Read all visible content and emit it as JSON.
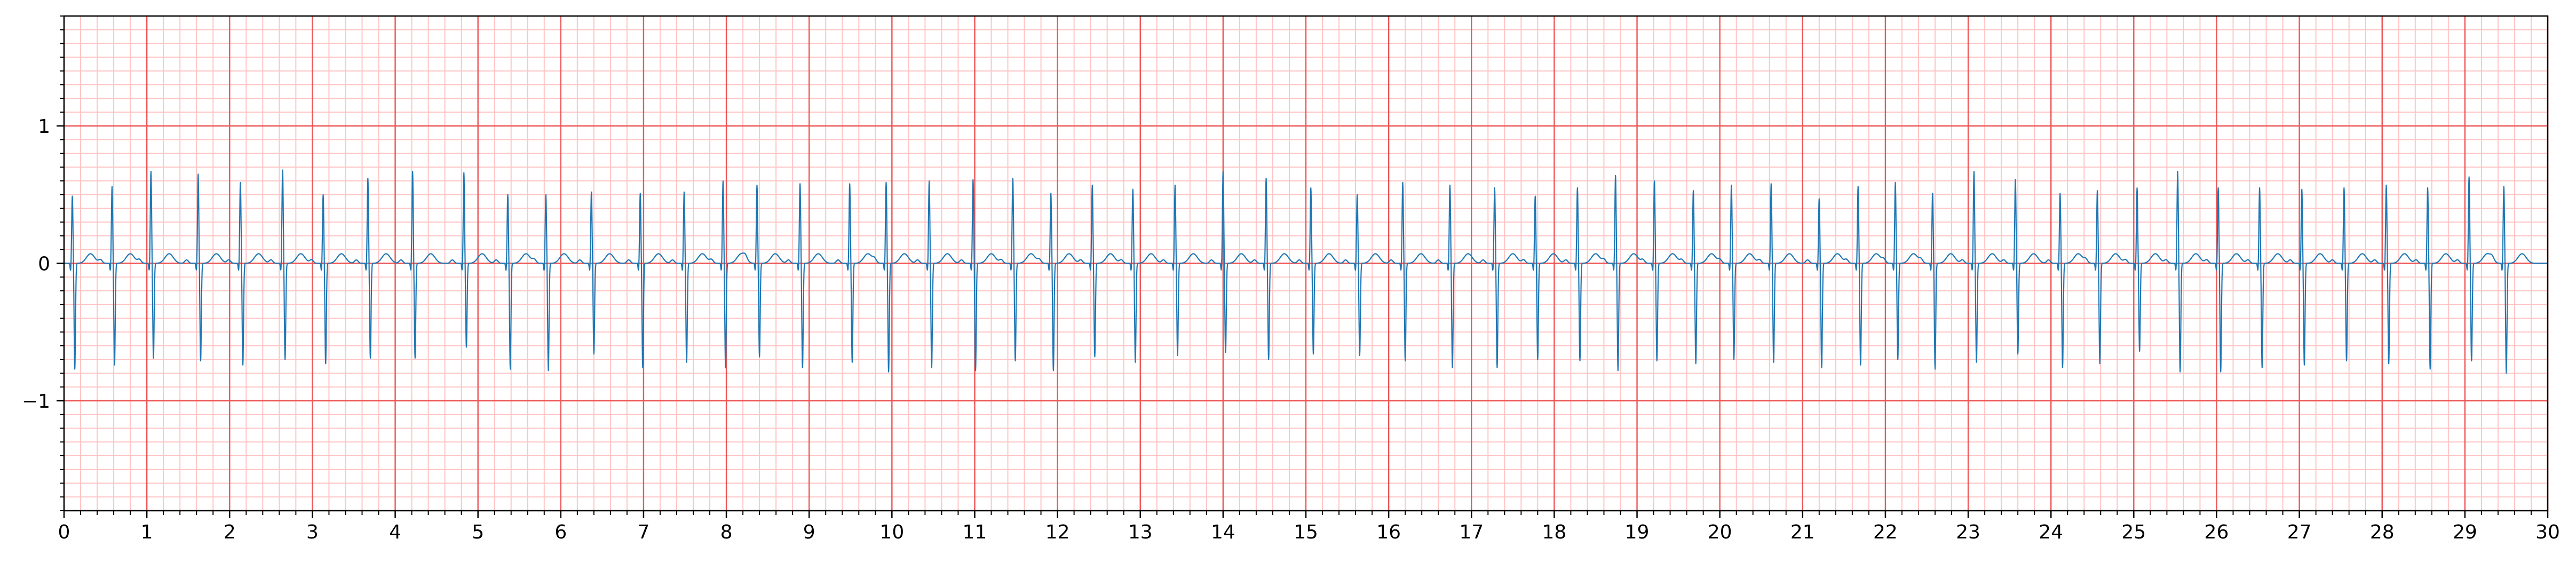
{
  "chart_data": {
    "type": "line",
    "title": "",
    "xlabel": "",
    "ylabel": "",
    "xlim": [
      0,
      30
    ],
    "ylim": [
      -1.8,
      1.8
    ],
    "x_major_ticks": [
      0,
      1,
      2,
      3,
      4,
      5,
      6,
      7,
      8,
      9,
      10,
      11,
      12,
      13,
      14,
      15,
      16,
      17,
      18,
      19,
      20,
      21,
      22,
      23,
      24,
      25,
      26,
      27,
      28,
      29,
      30
    ],
    "x_tick_labels": [
      "0",
      "1",
      "2",
      "3",
      "4",
      "5",
      "6",
      "7",
      "8",
      "9",
      "10",
      "11",
      "12",
      "13",
      "14",
      "15",
      "16",
      "17",
      "18",
      "19",
      "20",
      "21",
      "22",
      "23",
      "24",
      "25",
      "26",
      "27",
      "28",
      "29",
      "30"
    ],
    "x_minor_step": 0.2,
    "y_major_ticks": [
      -1,
      0,
      1
    ],
    "y_tick_labels": [
      "−1",
      "0",
      "1"
    ],
    "y_minor_step": 0.1,
    "grid": true,
    "grid_colors": {
      "major": "#ee5555",
      "minor": "#ffc4c4"
    },
    "series": [
      {
        "line_color": "#1f77b4",
        "beats": {
          "r_peak_times": [
            0.1,
            0.58,
            1.05,
            1.62,
            2.13,
            2.64,
            3.13,
            3.67,
            4.21,
            4.83,
            5.36,
            5.82,
            6.37,
            6.96,
            7.49,
            7.96,
            8.37,
            8.89,
            9.49,
            9.93,
            10.45,
            10.98,
            11.46,
            11.92,
            12.42,
            12.91,
            13.42,
            14.0,
            14.52,
            15.06,
            15.62,
            16.17,
            16.74,
            17.28,
            17.77,
            18.28,
            18.74,
            19.21,
            19.68,
            20.14,
            20.62,
            21.2,
            21.67,
            22.12,
            22.57,
            23.07,
            23.57,
            24.11,
            24.56,
            25.04,
            25.53,
            26.02,
            26.52,
            27.03,
            27.54,
            28.05,
            28.55,
            29.05,
            29.47
          ],
          "r_amplitudes": [
            0.49,
            0.56,
            0.67,
            0.65,
            0.59,
            0.68,
            0.5,
            0.62,
            0.67,
            0.66,
            0.5,
            0.5,
            0.52,
            0.51,
            0.52,
            0.6,
            0.57,
            0.58,
            0.58,
            0.59,
            0.6,
            0.61,
            0.62,
            0.51,
            0.57,
            0.54,
            0.57,
            0.67,
            0.62,
            0.55,
            0.5,
            0.59,
            0.57,
            0.55,
            0.49,
            0.55,
            0.64,
            0.6,
            0.53,
            0.57,
            0.58,
            0.47,
            0.56,
            0.59,
            0.51,
            0.67,
            0.61,
            0.51,
            0.53,
            0.55,
            0.67,
            0.55,
            0.55,
            0.54,
            0.55,
            0.57,
            0.55,
            0.63,
            0.56
          ],
          "s_amplitudes": [
            -0.77,
            -0.74,
            -0.69,
            -0.71,
            -0.74,
            -0.7,
            -0.73,
            -0.69,
            -0.69,
            -0.61,
            -0.77,
            -0.78,
            -0.66,
            -0.76,
            -0.72,
            -0.76,
            -0.68,
            -0.76,
            -0.72,
            -0.79,
            -0.76,
            -0.78,
            -0.71,
            -0.78,
            -0.68,
            -0.72,
            -0.67,
            -0.65,
            -0.7,
            -0.66,
            -0.67,
            -0.71,
            -0.76,
            -0.76,
            -0.7,
            -0.71,
            -0.78,
            -0.71,
            -0.73,
            -0.7,
            -0.72,
            -0.76,
            -0.74,
            -0.7,
            -0.77,
            -0.72,
            -0.66,
            -0.76,
            -0.73,
            -0.64,
            -0.79,
            -0.79,
            -0.76,
            -0.74,
            -0.71,
            -0.73,
            -0.77,
            -0.71,
            -0.8
          ],
          "t_amplitude": 0.07,
          "baseline": 0.0
        }
      }
    ]
  }
}
